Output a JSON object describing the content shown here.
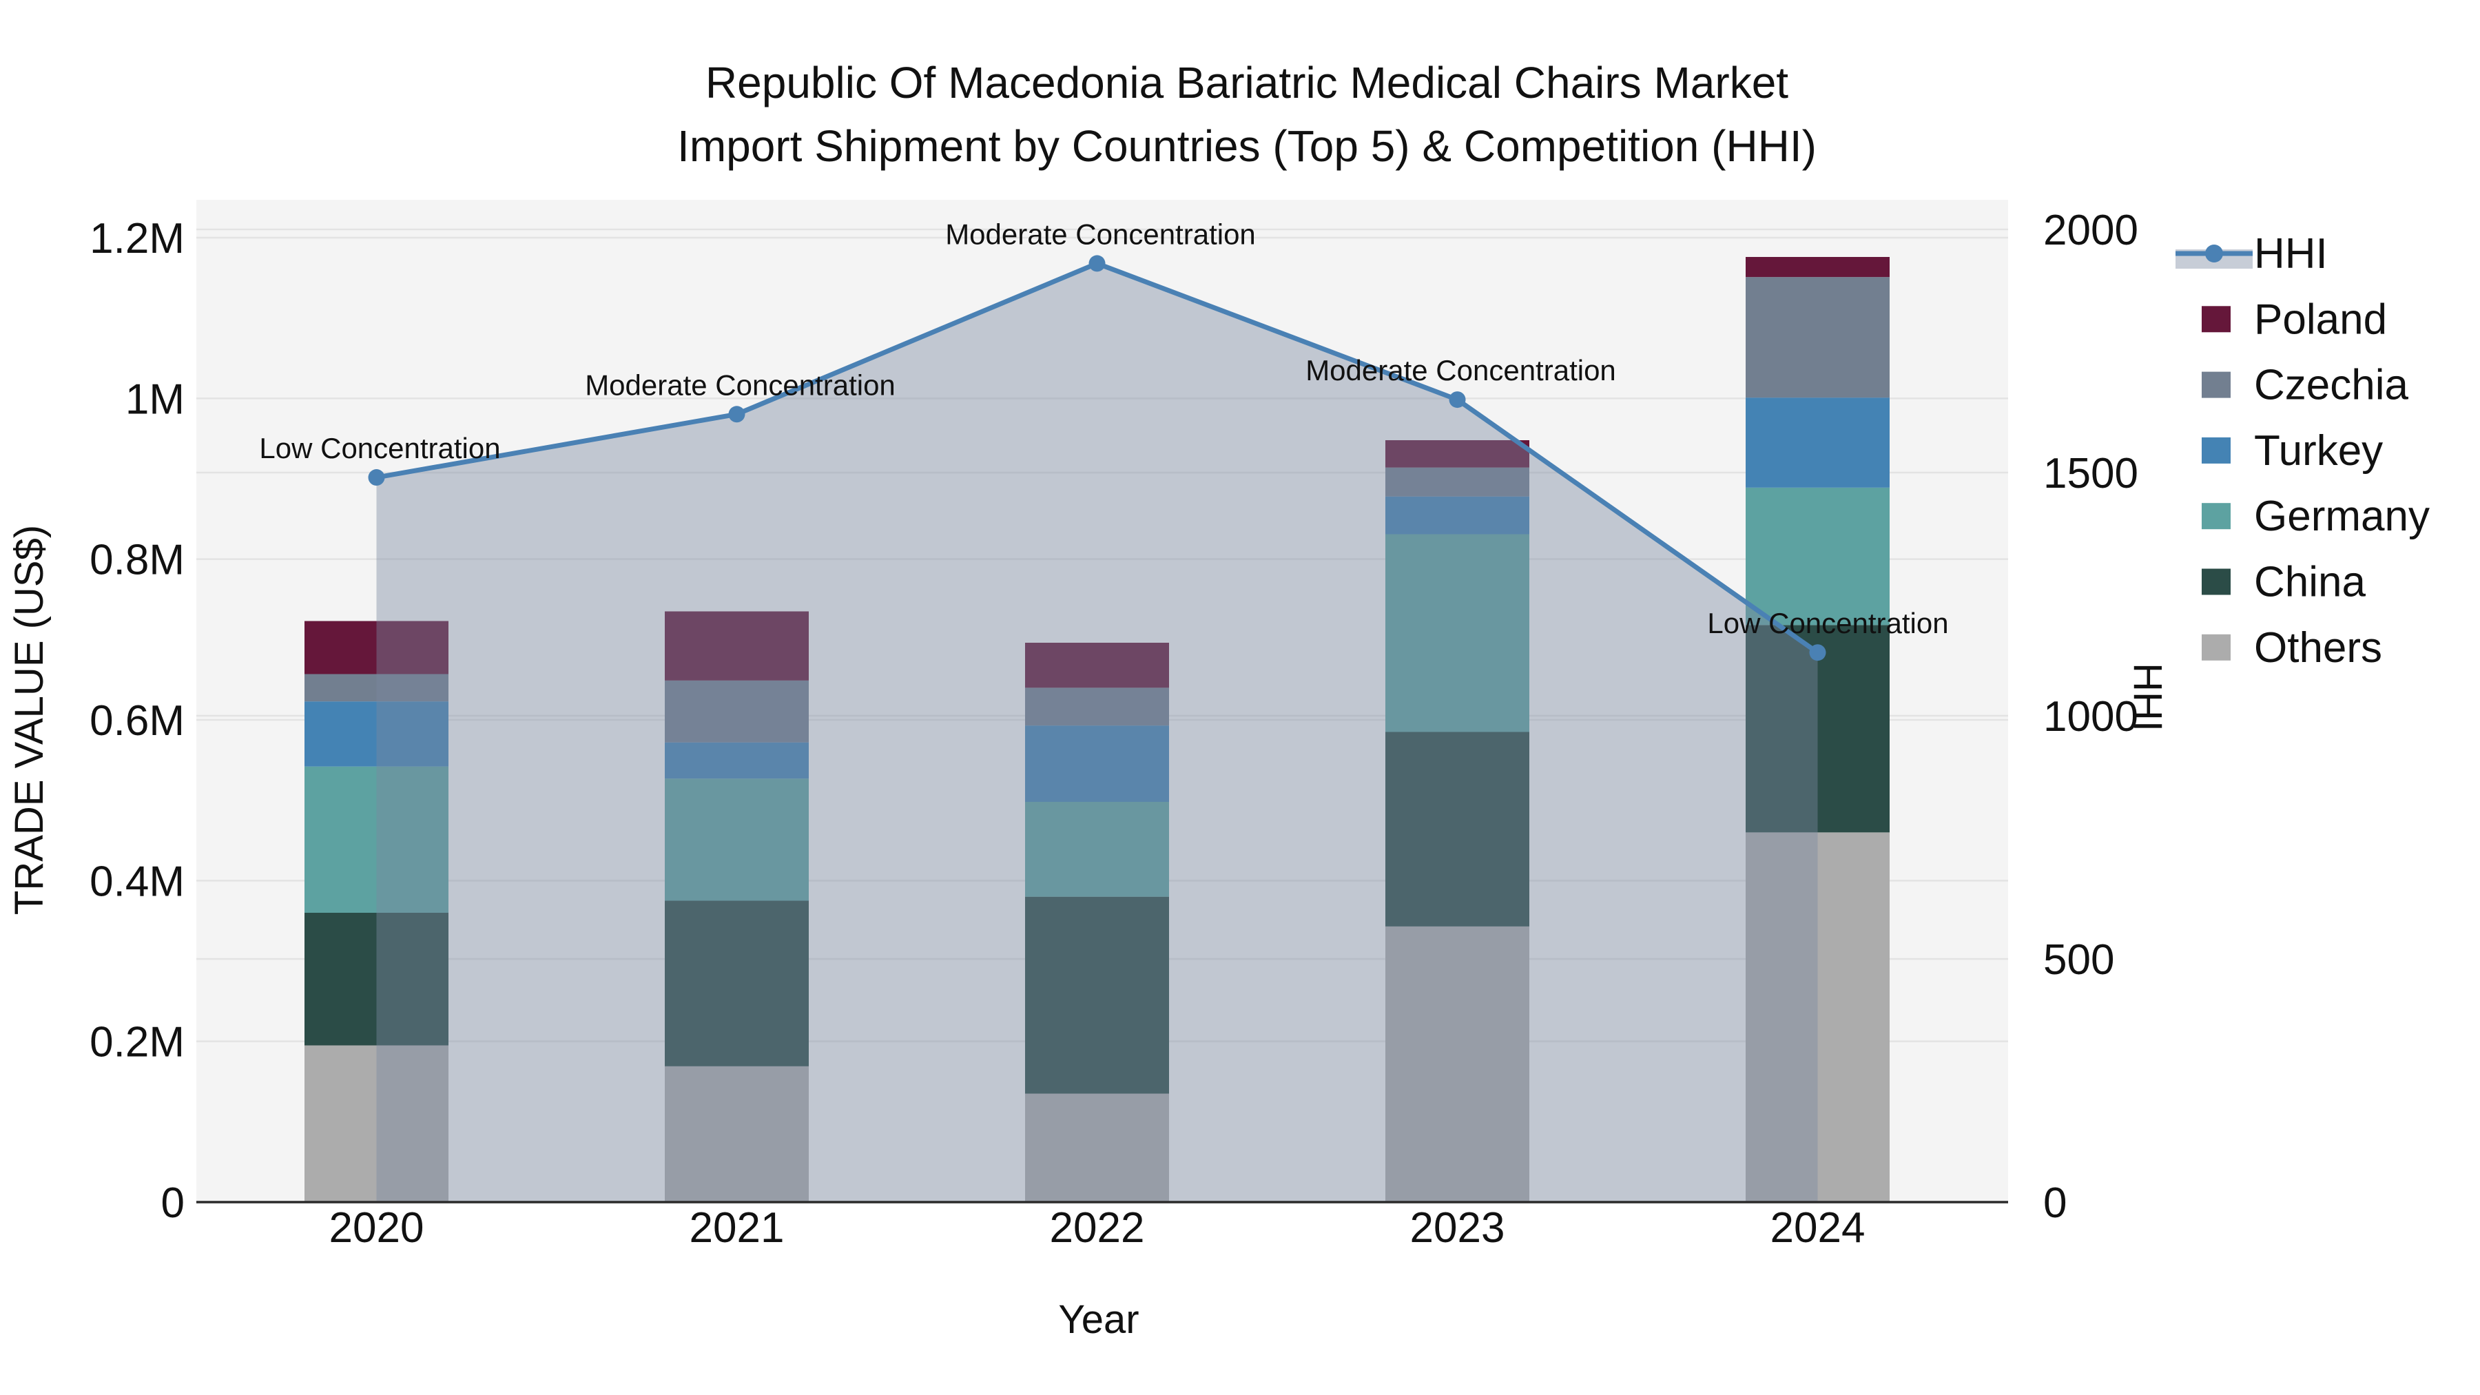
{
  "title": {
    "line1": "Republic Of Macedonia Bariatric Medical Chairs Market",
    "line2": "Import Shipment by Countries (Top 5) & Competition (HHI)"
  },
  "axes": {
    "x": {
      "title": "Year",
      "categories": [
        "2020",
        "2021",
        "2022",
        "2023",
        "2024"
      ]
    },
    "y_left": {
      "title": "TRADE VALUE (US$)",
      "ticks": [
        {
          "value": 0,
          "label": "0"
        },
        {
          "value": 200000,
          "label": "0.2M"
        },
        {
          "value": 400000,
          "label": "0.4M"
        },
        {
          "value": 600000,
          "label": "0.6M"
        },
        {
          "value": 800000,
          "label": "0.8M"
        },
        {
          "value": 1000000,
          "label": "1M"
        },
        {
          "value": 1200000,
          "label": "1.2M"
        }
      ],
      "range": [
        0,
        1200000
      ]
    },
    "y_right": {
      "title": "HHI",
      "ticks": [
        {
          "value": 0,
          "label": "0"
        },
        {
          "value": 500,
          "label": "500"
        },
        {
          "value": 1000,
          "label": "1000"
        },
        {
          "value": 1500,
          "label": "1500"
        },
        {
          "value": 2000,
          "label": "2000"
        }
      ],
      "range": [
        0,
        2000
      ]
    }
  },
  "legend": {
    "items": [
      {
        "label": "HHI",
        "type": "line",
        "color": "#4a81b4"
      },
      {
        "label": "Poland",
        "type": "swatch",
        "color": "#65173a"
      },
      {
        "label": "Czechia",
        "type": "swatch",
        "color": "#727f90"
      },
      {
        "label": "Turkey",
        "type": "swatch",
        "color": "#4483b4"
      },
      {
        "label": "Germany",
        "type": "swatch",
        "color": "#5da2a1"
      },
      {
        "label": "China",
        "type": "swatch",
        "color": "#2b4c47"
      },
      {
        "label": "Others",
        "type": "swatch",
        "color": "#acacac"
      }
    ]
  },
  "chart_data": {
    "type": "bar",
    "stacked": true,
    "categories": [
      "2020",
      "2021",
      "2022",
      "2023",
      "2024"
    ],
    "bar_unit": "US$",
    "series": [
      {
        "name": "Others",
        "color": "#acacac",
        "values": [
          195000,
          169000,
          135000,
          343000,
          460000
        ]
      },
      {
        "name": "China",
        "color": "#2b4c47",
        "values": [
          165000,
          206000,
          245000,
          242000,
          258000
        ]
      },
      {
        "name": "Germany",
        "color": "#5da2a1",
        "values": [
          182000,
          152000,
          118000,
          246000,
          171000
        ]
      },
      {
        "name": "Turkey",
        "color": "#4483b4",
        "values": [
          81000,
          45000,
          95000,
          47000,
          112000
        ]
      },
      {
        "name": "Czechia",
        "color": "#727f90",
        "values": [
          34000,
          77000,
          47000,
          36000,
          150000
        ]
      },
      {
        "name": "Poland",
        "color": "#65173a",
        "values": [
          66000,
          86000,
          56000,
          34000,
          25000
        ]
      }
    ],
    "line_series": {
      "name": "HHI",
      "color": "#4a81b4",
      "area_fill": "rgba(122,137,160,0.42)",
      "values": [
        1490,
        1620,
        1930,
        1650,
        1130
      ]
    },
    "annotations": [
      {
        "category": "2020",
        "text": "Low Concentration"
      },
      {
        "category": "2021",
        "text": "Moderate Concentration"
      },
      {
        "category": "2022",
        "text": "Moderate Concentration"
      },
      {
        "category": "2023",
        "text": "Moderate Concentration"
      },
      {
        "category": "2024",
        "text": "Low Concentration"
      }
    ],
    "xlabel": "Year",
    "ylabel_left": "TRADE VALUE (US$)",
    "ylabel_right": "HHI",
    "ylim_left": [
      0,
      1200000
    ],
    "ylim_right": [
      0,
      2000
    ],
    "grid": true,
    "legend_position": "right",
    "plot_bg": "#f4f4f4",
    "grid_color": "#e3e3e3"
  }
}
